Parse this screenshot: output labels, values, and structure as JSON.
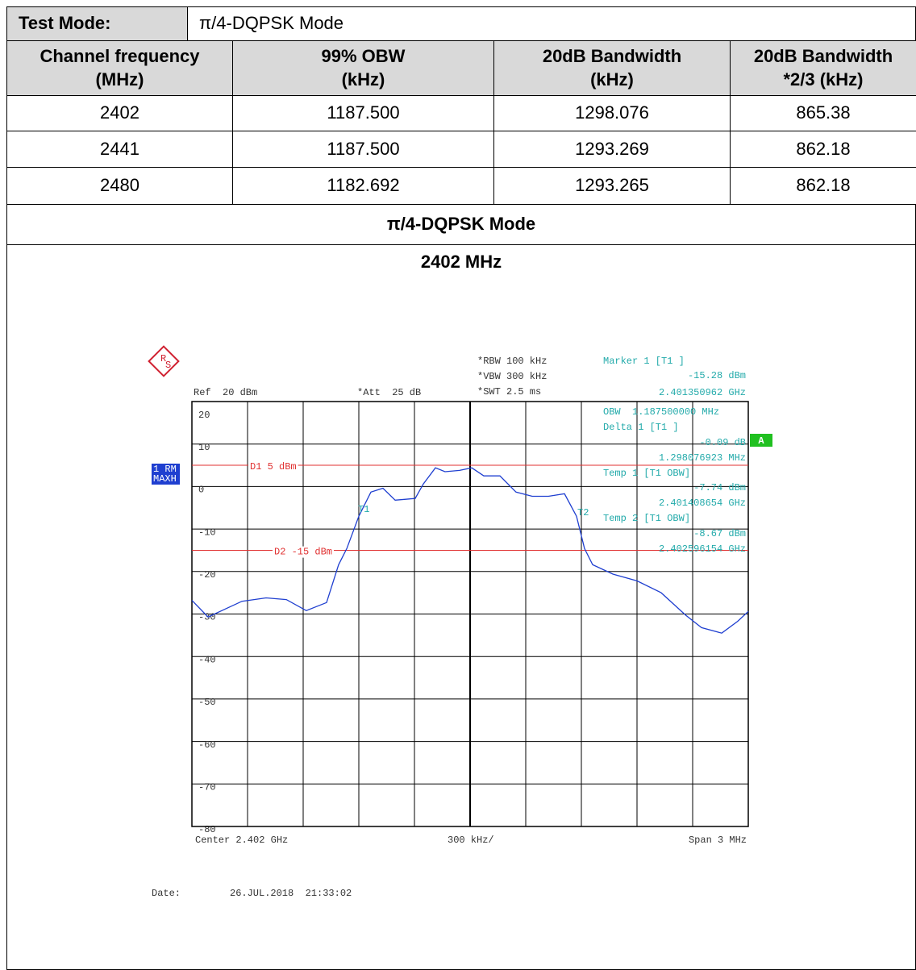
{
  "table": {
    "test_mode_label": "Test Mode:",
    "test_mode": "π/4-DQPSK Mode",
    "header": [
      "Channel frequency\n(MHz)",
      "99% OBW\n(kHz)",
      "20dB Bandwidth\n(kHz)",
      "20dB Bandwidth\n*2/3 (kHz)"
    ],
    "rows": [
      [
        "2402",
        "1187.500",
        "1298.076",
        "865.38"
      ],
      [
        "2441",
        "1187.500",
        "1293.269",
        "862.18"
      ],
      [
        "2480",
        "1182.692",
        "1293.265",
        "862.18"
      ]
    ]
  },
  "section_title": "π/4-DQPSK Mode",
  "channel": "2402 MHz",
  "chart_data": {
    "type": "line",
    "settings_left": [
      "Ref  20 dBm",
      "*Att  25 dB"
    ],
    "settings_right": [
      "*RBW 100 kHz",
      "*VBW 300 kHz",
      "*SWT 2.5 ms"
    ],
    "marker_panel": [
      "Marker 1 [T1 ]",
      "-15.28 dBm",
      "2.401350962 GHz",
      "OBW  1.187500000 MHz",
      "Delta 1 [T1 ]",
      "-0.09 dB",
      "1.298076923 MHz",
      "Temp 1 [T1 OBW]",
      "-7.74 dBm",
      "2.401408654 GHz",
      "Temp 2 [T1 OBW]",
      "-8.67 dBm",
      "2.402596154 GHz"
    ],
    "trace_badge": [
      "1 RM",
      "MAXH"
    ],
    "badge": "A",
    "display_lines": [
      {
        "label": "D1 5 dBm",
        "value": 5
      },
      {
        "label": "D2 -15 dBm",
        "value": -15
      }
    ],
    "marker_labels": [
      "T1",
      "T2"
    ],
    "footer": [
      "Center 2.402 GHz",
      "300 kHz/",
      "Span 3 MHz"
    ],
    "date_label": "Date:",
    "date": "26.JUL.2018  21:33:02",
    "xlim": [
      2400.5,
      2403.5
    ],
    "ylim": [
      -80,
      20
    ],
    "yticks": [
      20,
      10,
      0,
      -10,
      -20,
      -30,
      -40,
      -50,
      -60,
      -70,
      -80
    ],
    "x": [
      2400.5,
      2400.587,
      2400.77,
      2400.9,
      2401.009,
      2401.117,
      2401.226,
      2401.291,
      2401.335,
      2401.4,
      2401.465,
      2401.53,
      2401.596,
      2401.704,
      2401.748,
      2401.813,
      2401.865,
      2401.943,
      2402.009,
      2402.074,
      2402.161,
      2402.248,
      2402.335,
      2402.422,
      2402.509,
      2402.574,
      2402.617,
      2402.661,
      2402.77,
      2402.9,
      2403.03,
      2403.161,
      2403.248,
      2403.357,
      2403.443,
      2403.5
    ],
    "series": [
      {
        "color": "#1f3fd0",
        "values": [
          -26.8,
          -30.7,
          -27,
          -26.2,
          -26.6,
          -29.2,
          -27.3,
          -18.4,
          -14.6,
          -7,
          -1.3,
          -0.4,
          -3.2,
          -2.8,
          0.6,
          4.4,
          3.5,
          3.8,
          4.4,
          2.5,
          2.5,
          -1.3,
          -2.3,
          -2.3,
          -1.7,
          -7,
          -14.6,
          -18.4,
          -20.6,
          -22.2,
          -25,
          -30.2,
          -33.2,
          -34.5,
          -31.7,
          -29.4
        ]
      }
    ]
  }
}
